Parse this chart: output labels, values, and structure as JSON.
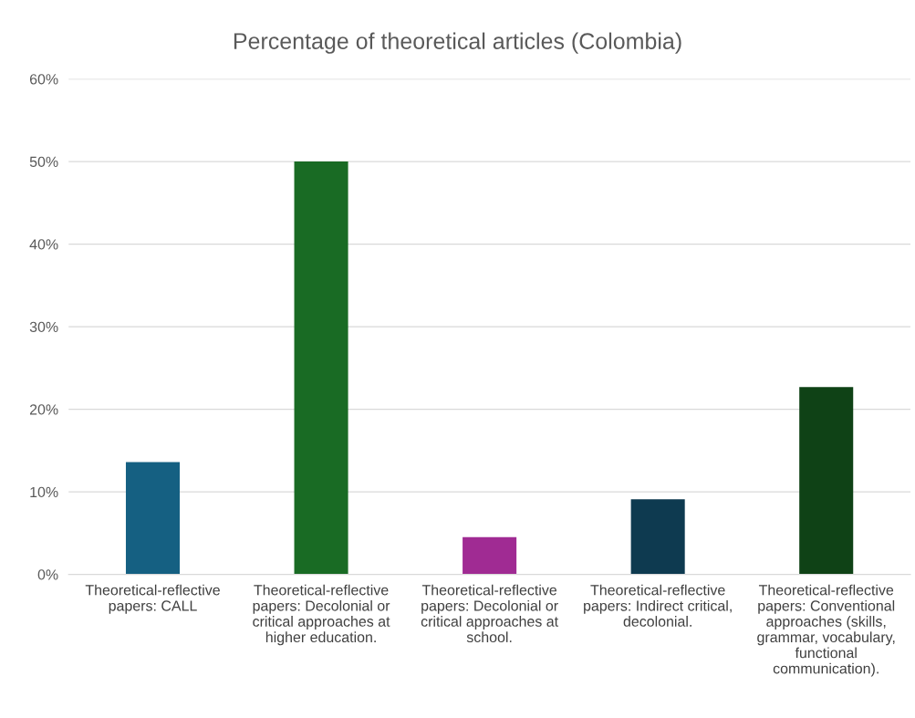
{
  "chart_data": {
    "type": "bar",
    "title": "Percentage of theoretical articles (Colombia)",
    "categories": [
      "Theoretical-reflective\npapers: CALL",
      "Theoretical-reflective\npapers: Decolonial or\ncritical approaches at\nhigher education.",
      "Theoretical-reflective\npapers: Decolonial or\ncritical approaches at\nschool.",
      "Theoretical-reflective\npapers: Indirect critical,\ndecolonial.",
      "Theoretical-reflective\npapers: Conventional\napproaches (skills,\ngrammar, vocabulary,\nfunctional\ncommunication)."
    ],
    "values": [
      13.6,
      50,
      4.5,
      9.1,
      22.7
    ],
    "colors": [
      "#156082",
      "#196b24",
      "#a02b93",
      "#0e3a50",
      "#0f4216"
    ],
    "ylim": [
      0,
      60
    ],
    "yticks": [
      {
        "value": 0,
        "label": "0%"
      },
      {
        "value": 10,
        "label": "10%"
      },
      {
        "value": 20,
        "label": "20%"
      },
      {
        "value": 30,
        "label": "30%"
      },
      {
        "value": 40,
        "label": "40%"
      },
      {
        "value": 50,
        "label": "50%"
      },
      {
        "value": 60,
        "label": "60%"
      }
    ],
    "grid": "y",
    "legend": false
  }
}
